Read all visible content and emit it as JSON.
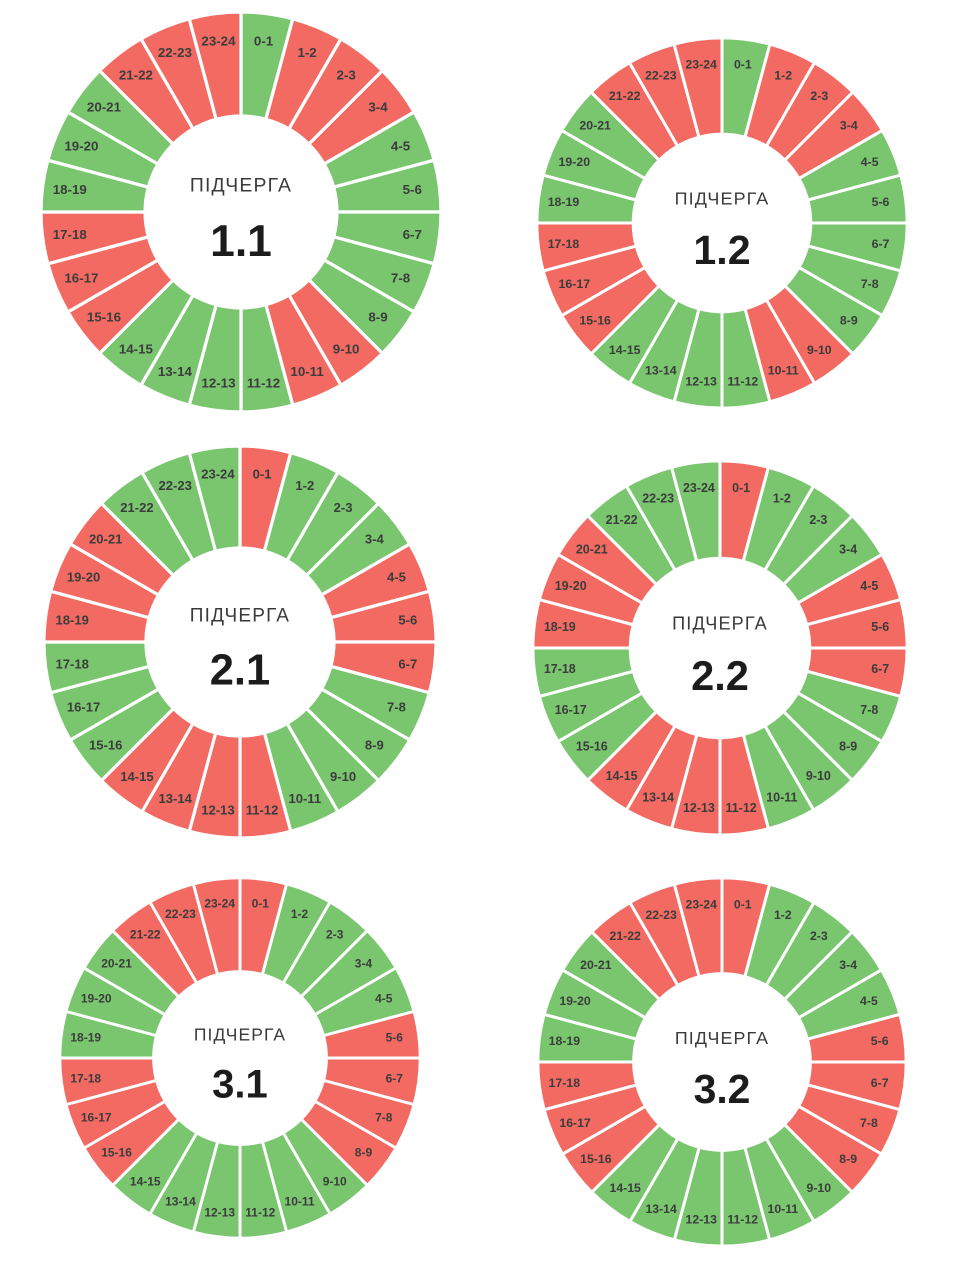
{
  "page": {
    "background": "#ffffff",
    "description_labels": {
      "center_title": "ПІДЧЕРГА"
    }
  },
  "colors": {
    "green": "#79c66f",
    "red": "#f26a62",
    "separator": "#ffffff",
    "hour_label": "#3c3c3c",
    "center_title": "#3a3a3a",
    "center_number": "#1c1c1c"
  },
  "hours": [
    "0-1",
    "1-2",
    "2-3",
    "3-4",
    "4-5",
    "5-6",
    "6-7",
    "7-8",
    "8-9",
    "9-10",
    "10-11",
    "11-12",
    "12-13",
    "13-14",
    "14-15",
    "15-16",
    "16-17",
    "17-18",
    "18-19",
    "19-20",
    "20-21",
    "21-22",
    "22-23",
    "23-24"
  ],
  "chart_data": [
    {
      "type": "pie",
      "variant": "donut",
      "title": "ПІДЧЕРГА",
      "subtitle": "1.1",
      "categories": [
        "0-1",
        "1-2",
        "2-3",
        "3-4",
        "4-5",
        "5-6",
        "6-7",
        "7-8",
        "8-9",
        "9-10",
        "10-11",
        "11-12",
        "12-13",
        "13-14",
        "14-15",
        "15-16",
        "16-17",
        "17-18",
        "18-19",
        "19-20",
        "20-21",
        "21-22",
        "22-23",
        "23-24"
      ],
      "values": [
        1,
        1,
        1,
        1,
        1,
        1,
        1,
        1,
        1,
        1,
        1,
        1,
        1,
        1,
        1,
        1,
        1,
        1,
        1,
        1,
        1,
        1,
        1,
        1
      ],
      "slice_angle_deg": 15,
      "start_angle": "top",
      "direction": "clockwise",
      "states": [
        "green",
        "red",
        "red",
        "red",
        "green",
        "green",
        "green",
        "green",
        "green",
        "red",
        "red",
        "green",
        "green",
        "green",
        "green",
        "red",
        "red",
        "red",
        "green",
        "green",
        "green",
        "red",
        "red",
        "red"
      ]
    },
    {
      "type": "pie",
      "variant": "donut",
      "title": "ПІДЧЕРГА",
      "subtitle": "1.2",
      "categories": [
        "0-1",
        "1-2",
        "2-3",
        "3-4",
        "4-5",
        "5-6",
        "6-7",
        "7-8",
        "8-9",
        "9-10",
        "10-11",
        "11-12",
        "12-13",
        "13-14",
        "14-15",
        "15-16",
        "16-17",
        "17-18",
        "18-19",
        "19-20",
        "20-21",
        "21-22",
        "22-23",
        "23-24"
      ],
      "values": [
        1,
        1,
        1,
        1,
        1,
        1,
        1,
        1,
        1,
        1,
        1,
        1,
        1,
        1,
        1,
        1,
        1,
        1,
        1,
        1,
        1,
        1,
        1,
        1
      ],
      "slice_angle_deg": 15,
      "start_angle": "top",
      "direction": "clockwise",
      "states": [
        "green",
        "red",
        "red",
        "red",
        "green",
        "green",
        "green",
        "green",
        "green",
        "red",
        "red",
        "green",
        "green",
        "green",
        "green",
        "red",
        "red",
        "red",
        "green",
        "green",
        "green",
        "red",
        "red",
        "red"
      ]
    },
    {
      "type": "pie",
      "variant": "donut",
      "title": "ПІДЧЕРГА",
      "subtitle": "2.1",
      "categories": [
        "0-1",
        "1-2",
        "2-3",
        "3-4",
        "4-5",
        "5-6",
        "6-7",
        "7-8",
        "8-9",
        "9-10",
        "10-11",
        "11-12",
        "12-13",
        "13-14",
        "14-15",
        "15-16",
        "16-17",
        "17-18",
        "18-19",
        "19-20",
        "20-21",
        "21-22",
        "22-23",
        "23-24"
      ],
      "values": [
        1,
        1,
        1,
        1,
        1,
        1,
        1,
        1,
        1,
        1,
        1,
        1,
        1,
        1,
        1,
        1,
        1,
        1,
        1,
        1,
        1,
        1,
        1,
        1
      ],
      "slice_angle_deg": 15,
      "start_angle": "top",
      "direction": "clockwise",
      "states": [
        "red",
        "green",
        "green",
        "green",
        "red",
        "red",
        "red",
        "green",
        "green",
        "green",
        "green",
        "red",
        "red",
        "red",
        "red",
        "green",
        "green",
        "green",
        "red",
        "red",
        "red",
        "green",
        "green",
        "green"
      ]
    },
    {
      "type": "pie",
      "variant": "donut",
      "title": "ПІДЧЕРГА",
      "subtitle": "2.2",
      "categories": [
        "0-1",
        "1-2",
        "2-3",
        "3-4",
        "4-5",
        "5-6",
        "6-7",
        "7-8",
        "8-9",
        "9-10",
        "10-11",
        "11-12",
        "12-13",
        "13-14",
        "14-15",
        "15-16",
        "16-17",
        "17-18",
        "18-19",
        "19-20",
        "20-21",
        "21-22",
        "22-23",
        "23-24"
      ],
      "values": [
        1,
        1,
        1,
        1,
        1,
        1,
        1,
        1,
        1,
        1,
        1,
        1,
        1,
        1,
        1,
        1,
        1,
        1,
        1,
        1,
        1,
        1,
        1,
        1
      ],
      "slice_angle_deg": 15,
      "start_angle": "top",
      "direction": "clockwise",
      "states": [
        "red",
        "green",
        "green",
        "green",
        "red",
        "red",
        "red",
        "green",
        "green",
        "green",
        "green",
        "red",
        "red",
        "red",
        "red",
        "green",
        "green",
        "green",
        "red",
        "red",
        "red",
        "green",
        "green",
        "green"
      ]
    },
    {
      "type": "pie",
      "variant": "donut",
      "title": "ПІДЧЕРГА",
      "subtitle": "3.1",
      "categories": [
        "0-1",
        "1-2",
        "2-3",
        "3-4",
        "4-5",
        "5-6",
        "6-7",
        "7-8",
        "8-9",
        "9-10",
        "10-11",
        "11-12",
        "12-13",
        "13-14",
        "14-15",
        "15-16",
        "16-17",
        "17-18",
        "18-19",
        "19-20",
        "20-21",
        "21-22",
        "22-23",
        "23-24"
      ],
      "values": [
        1,
        1,
        1,
        1,
        1,
        1,
        1,
        1,
        1,
        1,
        1,
        1,
        1,
        1,
        1,
        1,
        1,
        1,
        1,
        1,
        1,
        1,
        1,
        1
      ],
      "slice_angle_deg": 15,
      "start_angle": "top",
      "direction": "clockwise",
      "states": [
        "red",
        "green",
        "green",
        "green",
        "green",
        "red",
        "red",
        "red",
        "red",
        "green",
        "green",
        "green",
        "green",
        "green",
        "green",
        "red",
        "red",
        "red",
        "green",
        "green",
        "green",
        "red",
        "red",
        "red"
      ]
    },
    {
      "type": "pie",
      "variant": "donut",
      "title": "ПІДЧЕРГА",
      "subtitle": "3.2",
      "categories": [
        "0-1",
        "1-2",
        "2-3",
        "3-4",
        "4-5",
        "5-6",
        "6-7",
        "7-8",
        "8-9",
        "9-10",
        "10-11",
        "11-12",
        "12-13",
        "13-14",
        "14-15",
        "15-16",
        "16-17",
        "17-18",
        "18-19",
        "19-20",
        "20-21",
        "21-22",
        "22-23",
        "23-24"
      ],
      "values": [
        1,
        1,
        1,
        1,
        1,
        1,
        1,
        1,
        1,
        1,
        1,
        1,
        1,
        1,
        1,
        1,
        1,
        1,
        1,
        1,
        1,
        1,
        1,
        1
      ],
      "slice_angle_deg": 15,
      "start_angle": "top",
      "direction": "clockwise",
      "states": [
        "red",
        "green",
        "green",
        "green",
        "green",
        "red",
        "red",
        "red",
        "red",
        "green",
        "green",
        "green",
        "green",
        "green",
        "green",
        "red",
        "red",
        "red",
        "green",
        "green",
        "green",
        "red",
        "red",
        "red"
      ]
    }
  ]
}
